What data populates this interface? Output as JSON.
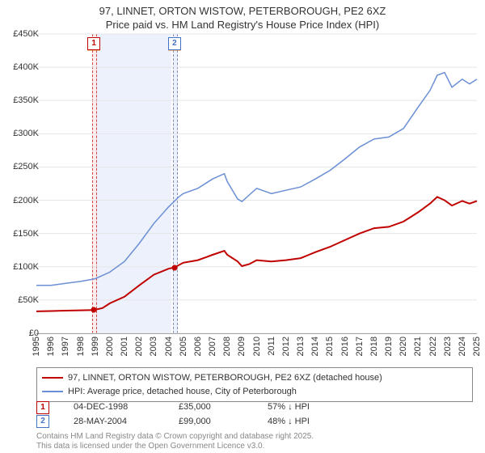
{
  "title_line1": "97, LINNET, ORTON WISTOW, PETERBOROUGH, PE2 6XZ",
  "title_line2": "Price paid vs. HM Land Registry's House Price Index (HPI)",
  "chart": {
    "type": "line",
    "x_min": 1995,
    "x_max": 2025,
    "y_min": 0,
    "y_max": 450000,
    "ytick_step": 50000,
    "y_prefix": "£",
    "grid_color": "#eeeeee",
    "background": "#ffffff",
    "series": [
      {
        "name": "97, LINNET, ORTON WISTOW, PETERBOROUGH, PE2 6XZ (detached house)",
        "color": "#c00000",
        "width": 2,
        "data": [
          [
            1995,
            33000
          ],
          [
            1996,
            33500
          ],
          [
            1997,
            34000
          ],
          [
            1998,
            34500
          ],
          [
            1998.92,
            35000
          ],
          [
            1999.5,
            38000
          ],
          [
            2000,
            45000
          ],
          [
            2001,
            55000
          ],
          [
            2002,
            72000
          ],
          [
            2003,
            88000
          ],
          [
            2004,
            97000
          ],
          [
            2004.41,
            99000
          ],
          [
            2005,
            106000
          ],
          [
            2006,
            110000
          ],
          [
            2007,
            118000
          ],
          [
            2007.8,
            124000
          ],
          [
            2008,
            118000
          ],
          [
            2008.7,
            108000
          ],
          [
            2009,
            101000
          ],
          [
            2009.5,
            104000
          ],
          [
            2010,
            110000
          ],
          [
            2011,
            108000
          ],
          [
            2012,
            110000
          ],
          [
            2013,
            113000
          ],
          [
            2014,
            122000
          ],
          [
            2015,
            130000
          ],
          [
            2016,
            140000
          ],
          [
            2017,
            150000
          ],
          [
            2018,
            158000
          ],
          [
            2019,
            160000
          ],
          [
            2020,
            168000
          ],
          [
            2021,
            182000
          ],
          [
            2021.8,
            195000
          ],
          [
            2022.3,
            205000
          ],
          [
            2022.8,
            200000
          ],
          [
            2023.3,
            192000
          ],
          [
            2024,
            199000
          ],
          [
            2024.5,
            195000
          ],
          [
            2025,
            199000
          ]
        ]
      },
      {
        "name": "HPI: Average price, detached house, City of Peterborough",
        "color": "#6b8fd4",
        "width": 1.5,
        "data": [
          [
            1995,
            72000
          ],
          [
            1996,
            72000
          ],
          [
            1997,
            75000
          ],
          [
            1998,
            78000
          ],
          [
            1999,
            82000
          ],
          [
            2000,
            92000
          ],
          [
            2001,
            108000
          ],
          [
            2002,
            135000
          ],
          [
            2003,
            165000
          ],
          [
            2004,
            190000
          ],
          [
            2004.7,
            205000
          ],
          [
            2005,
            210000
          ],
          [
            2006,
            218000
          ],
          [
            2007,
            232000
          ],
          [
            2007.8,
            240000
          ],
          [
            2008,
            228000
          ],
          [
            2008.7,
            202000
          ],
          [
            2009,
            198000
          ],
          [
            2009.5,
            208000
          ],
          [
            2010,
            218000
          ],
          [
            2011,
            210000
          ],
          [
            2012,
            215000
          ],
          [
            2013,
            220000
          ],
          [
            2014,
            232000
          ],
          [
            2015,
            245000
          ],
          [
            2016,
            262000
          ],
          [
            2017,
            280000
          ],
          [
            2018,
            292000
          ],
          [
            2019,
            295000
          ],
          [
            2020,
            308000
          ],
          [
            2021,
            340000
          ],
          [
            2021.8,
            365000
          ],
          [
            2022.3,
            388000
          ],
          [
            2022.8,
            392000
          ],
          [
            2023.3,
            370000
          ],
          [
            2024,
            382000
          ],
          [
            2024.5,
            375000
          ],
          [
            2025,
            382000
          ]
        ]
      }
    ],
    "bands": [
      {
        "id": "1",
        "x": 1998.92,
        "width_years": 0.2,
        "color": "#c00000",
        "class": "b1"
      },
      {
        "id": "2",
        "x": 2004.41,
        "width_years": 0.2,
        "color": "#4472c4",
        "class": "b2"
      }
    ],
    "blue_band": {
      "start": 1999.1,
      "end": 2004.2
    },
    "sale_points": [
      {
        "x": 1998.92,
        "y": 35000
      },
      {
        "x": 2004.41,
        "y": 99000
      }
    ]
  },
  "legend": {
    "series1": "97, LINNET, ORTON WISTOW, PETERBOROUGH, PE2 6XZ (detached house)",
    "series2": "HPI: Average price, detached house, City of Peterborough",
    "color1": "#c00000",
    "color2": "#6b8fd4"
  },
  "transactions": [
    {
      "id": "1",
      "date": "04-DEC-1998",
      "price": "£35,000",
      "delta": "57% ↓ HPI",
      "color": "#c00000"
    },
    {
      "id": "2",
      "date": "28-MAY-2004",
      "price": "£99,000",
      "delta": "48% ↓ HPI",
      "color": "#4472c4"
    }
  ],
  "attribution_line1": "Contains HM Land Registry data © Crown copyright and database right 2025.",
  "attribution_line2": "This data is licensed under the Open Government Licence v3.0."
}
